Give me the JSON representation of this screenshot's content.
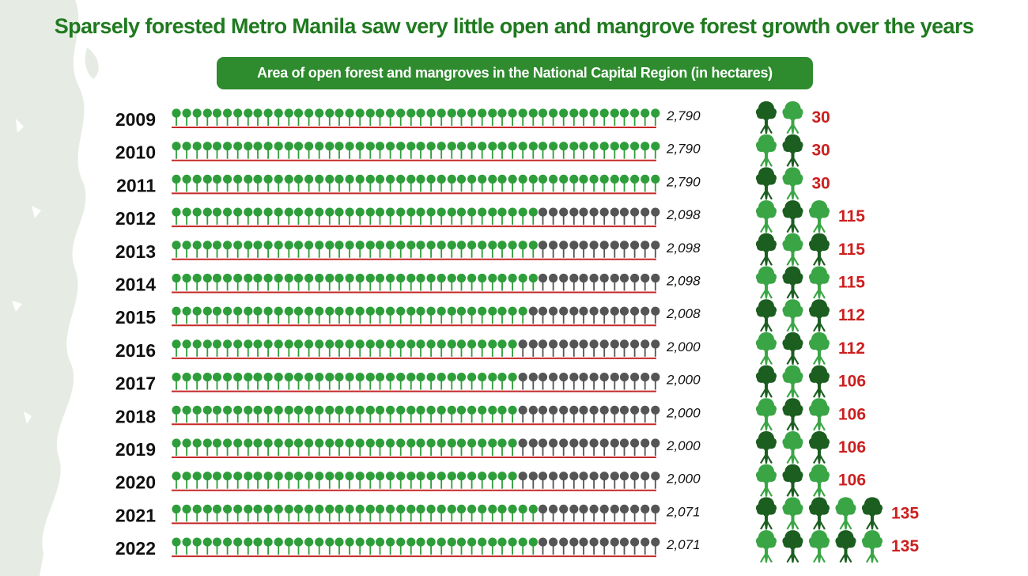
{
  "header": {
    "title": "Sparsely forested Metro Manila saw very little open and mangrove forest growth over the years",
    "subtitle": "Area of open forest and mangroves in the National Capital Region (in hectares)"
  },
  "colors": {
    "title": "#1f7a1f",
    "pill": "#2e8b2e",
    "forest_tree": "#2e9e3a",
    "empty_tree": "#555555",
    "baseline": "#c62828",
    "mangrove_dark": "#1b5e20",
    "mangrove_light": "#3aa545",
    "mangrove_value": "#cc1f1f",
    "map_bg": "#e6ece4"
  },
  "chart_data": {
    "type": "pictograph",
    "icon_total_per_row": 48,
    "icon_full_value": 2790,
    "years": [
      "2009",
      "2010",
      "2011",
      "2012",
      "2013",
      "2014",
      "2015",
      "2016",
      "2017",
      "2018",
      "2019",
      "2020",
      "2021",
      "2022"
    ],
    "open_forest": [
      2790,
      2790,
      2790,
      2098,
      2098,
      2098,
      2008,
      2000,
      2000,
      2000,
      2000,
      2000,
      2071,
      2071
    ],
    "open_forest_labels": [
      "2,790",
      "2,790",
      "2,790",
      "2,098",
      "2,098",
      "2,098",
      "2,008",
      "2,000",
      "2,000",
      "2,000",
      "2,000",
      "2,000",
      "2,071",
      "2,071"
    ],
    "mangroves": [
      30,
      30,
      30,
      115,
      115,
      115,
      112,
      112,
      106,
      106,
      106,
      106,
      135,
      135
    ],
    "mangrove_labels": [
      "30",
      "30",
      "30",
      "115",
      "115",
      "115",
      "112",
      "112",
      "106",
      "106",
      "106",
      "106",
      "135",
      "135"
    ],
    "mangrove_icons": [
      2,
      2,
      2,
      3,
      3,
      3,
      3,
      3,
      3,
      3,
      3,
      3,
      5,
      5
    ]
  }
}
